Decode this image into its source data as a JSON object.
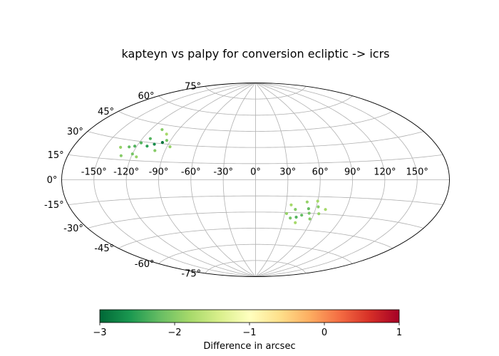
{
  "chart_data": {
    "type": "scatter",
    "projection": "aitoff",
    "title": "kapteyn vs palpy for conversion ecliptic -> icrs",
    "lon_tick_labels": [
      "-150°",
      "-120°",
      "-90°",
      "-60°",
      "-30°",
      "0°",
      "30°",
      "60°",
      "90°",
      "120°",
      "150°"
    ],
    "lat_tick_labels": [
      "75°",
      "60°",
      "45°",
      "30°",
      "15°",
      "0°",
      "-15°",
      "-30°",
      "-45°",
      "-60°",
      "-75°"
    ],
    "grid": true,
    "colorbar": {
      "label": "Difference in arcsec",
      "range": [
        -3,
        1
      ],
      "tick_labels": [
        "−3",
        "−2",
        "−1",
        "0",
        "1"
      ],
      "colormap": "RdYlGn_r",
      "stops": [
        "#006837",
        "#1a9850",
        "#66bd63",
        "#a6d96a",
        "#d9ef8b",
        "#ffffbf",
        "#fee08b",
        "#fdae61",
        "#f46d43",
        "#d73027",
        "#a50026"
      ]
    },
    "points": [
      {
        "lon": -97,
        "lat": 31,
        "value": -2.9
      },
      {
        "lon": -104,
        "lat": 29,
        "value": -2.7
      },
      {
        "lon": -110,
        "lat": 27,
        "value": -2.5
      },
      {
        "lon": -118,
        "lat": 29,
        "value": -2.3
      },
      {
        "lon": -122,
        "lat": 26,
        "value": -2.3
      },
      {
        "lon": -127,
        "lat": 25,
        "value": -2.2
      },
      {
        "lon": -112,
        "lat": 33,
        "value": -2.3
      },
      {
        "lon": -120,
        "lat": 20,
        "value": -2.1
      },
      {
        "lon": -130,
        "lat": 18,
        "value": -2.0
      },
      {
        "lon": -100,
        "lat": 24,
        "value": -2.0
      },
      {
        "lon": -94,
        "lat": 33,
        "value": -2.1
      },
      {
        "lon": -108,
        "lat": 41,
        "value": -2.0
      },
      {
        "lon": -87,
        "lat": 28,
        "value": -1.9
      },
      {
        "lon": -135,
        "lat": 24,
        "value": -1.9
      },
      {
        "lon": -115,
        "lat": 18,
        "value": -1.9
      },
      {
        "lon": -99,
        "lat": 38,
        "value": -1.8
      },
      {
        "lon": 43,
        "lat": -34,
        "value": -2.3
      },
      {
        "lon": 48,
        "lat": -32,
        "value": -2.2
      },
      {
        "lon": 37,
        "lat": -35,
        "value": -2.1
      },
      {
        "lon": 55,
        "lat": -30,
        "value": -2.1
      },
      {
        "lon": 58,
        "lat": -35,
        "value": -2.0
      },
      {
        "lon": 40,
        "lat": -27,
        "value": -2.0
      },
      {
        "lon": 32,
        "lat": -31,
        "value": -1.9
      },
      {
        "lon": 62,
        "lat": -24,
        "value": -2.0
      },
      {
        "lon": 50,
        "lat": -20,
        "value": -1.9
      },
      {
        "lon": 65,
        "lat": -30,
        "value": -1.9
      },
      {
        "lon": 70,
        "lat": -26,
        "value": -1.8
      },
      {
        "lon": 44,
        "lat": -39,
        "value": -1.8
      },
      {
        "lon": 53,
        "lat": -26,
        "value": -2.2
      },
      {
        "lon": 60,
        "lat": -19,
        "value": -1.8
      },
      {
        "lon": 35,
        "lat": -23,
        "value": -1.8
      }
    ]
  }
}
